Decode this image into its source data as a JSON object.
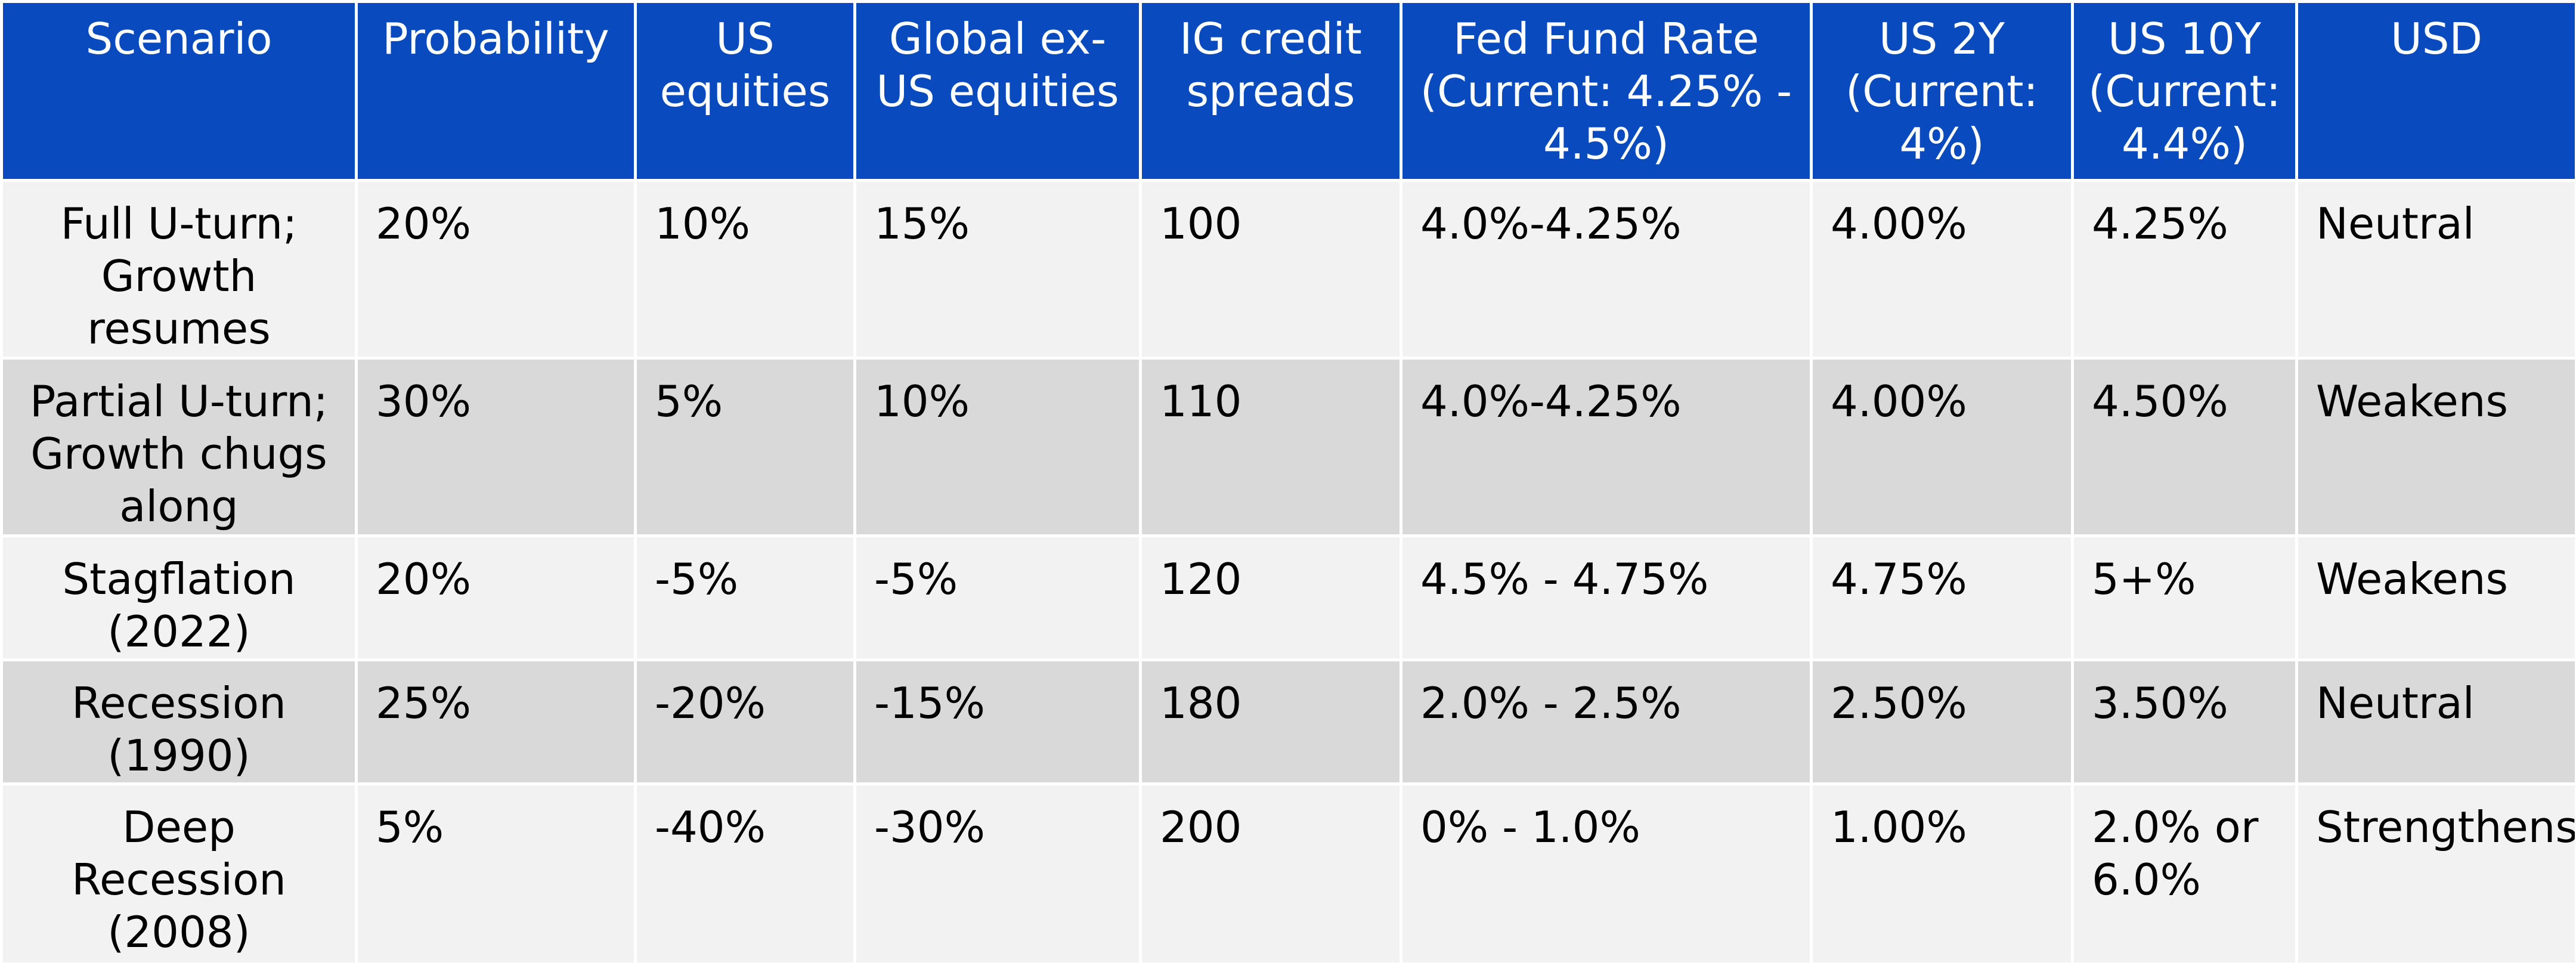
{
  "table": {
    "headers": [
      "Scenario",
      "Probability",
      "US equities",
      "Global ex-US equities",
      "IG credit spreads",
      "Fed Fund Rate (Current: 4.25% - 4.5%)",
      "US 2Y (Current: 4%)",
      "US 10Y (Current: 4.4%)",
      "USD"
    ],
    "rows": [
      {
        "scenario": "Full U-turn; Growth resumes",
        "probability": "20%",
        "us_equities": "10%",
        "global_ex_us_equities": "15%",
        "ig_credit_spreads": "100",
        "fed_fund_rate": "4.0%-4.25%",
        "us_2y": "4.00%",
        "us_10y": "4.25%",
        "usd": "Neutral"
      },
      {
        "scenario": "Partial U-turn; Growth chugs along",
        "probability": "30%",
        "us_equities": "5%",
        "global_ex_us_equities": "10%",
        "ig_credit_spreads": "110",
        "fed_fund_rate": "4.0%-4.25%",
        "us_2y": "4.00%",
        "us_10y": "4.50%",
        "usd": "Weakens"
      },
      {
        "scenario": "Stagflation (2022)",
        "probability": "20%",
        "us_equities": "-5%",
        "global_ex_us_equities": "-5%",
        "ig_credit_spreads": "120",
        "fed_fund_rate": "4.5% - 4.75%",
        "us_2y": "4.75%",
        "us_10y": "5+%",
        "usd": "Weakens"
      },
      {
        "scenario": "Recession (1990)",
        "probability": "25%",
        "us_equities": "-20%",
        "global_ex_us_equities": "-15%",
        "ig_credit_spreads": "180",
        "fed_fund_rate": "2.0% - 2.5%",
        "us_2y": "2.50%",
        "us_10y": "3.50%",
        "usd": "Neutral"
      },
      {
        "scenario": "Deep Recession (2008)",
        "probability": "5%",
        "us_equities": "-40%",
        "global_ex_us_equities": "-30%",
        "ig_credit_spreads": "200",
        "fed_fund_rate": "0% - 1.0%",
        "us_2y": "1.00%",
        "us_10y": "2.0% or 6.0%",
        "usd": "Strengthens"
      }
    ],
    "colors": {
      "header_bg": "#0a4abf",
      "header_text": "#ffffff",
      "row_light": "#f2f2f2",
      "row_dark": "#d9d9d9",
      "gridline": "#ffffff"
    }
  }
}
